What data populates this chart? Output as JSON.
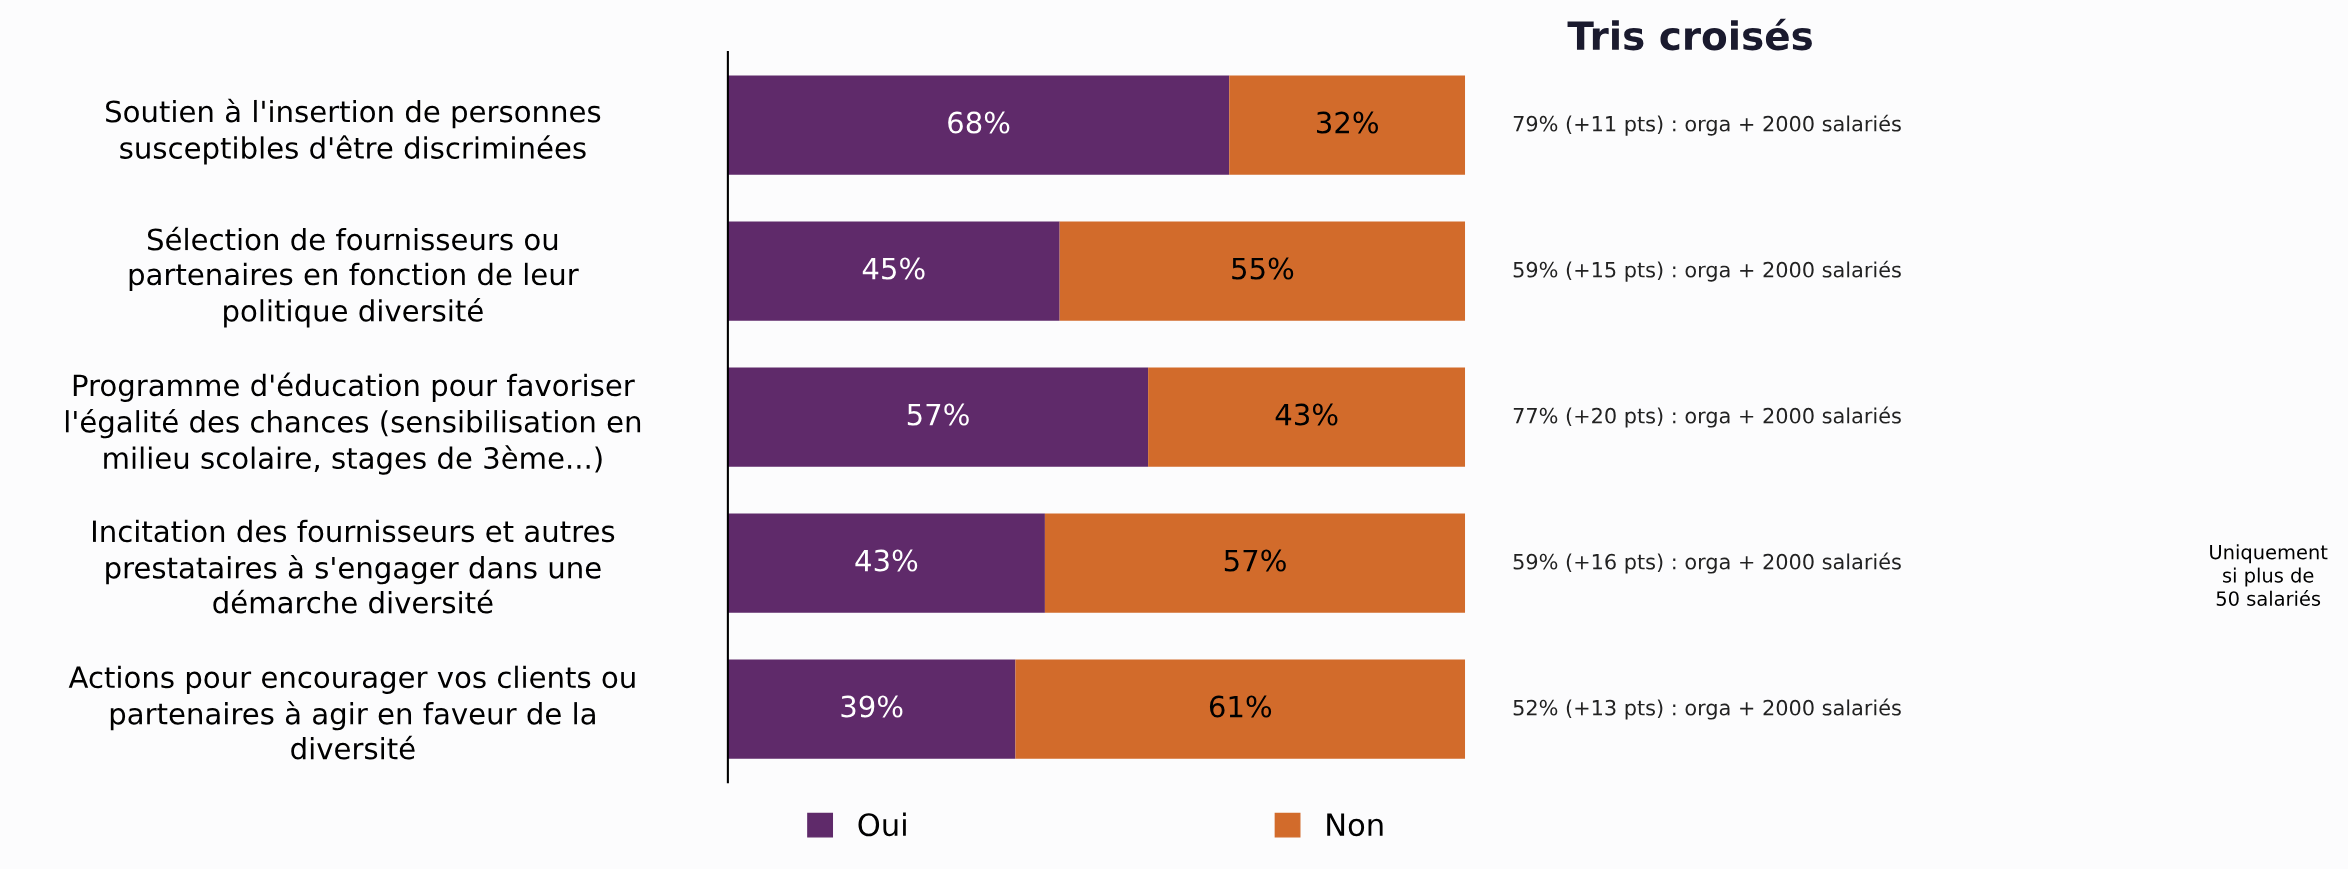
{
  "chart_data": {
    "type": "bar",
    "orientation": "horizontal",
    "stacked": true,
    "title": "Tris croisés",
    "categories": [
      "Soutien à l'insertion de personnes\nsusceptibles d'être discriminées",
      "Sélection de fournisseurs ou\npartenaires en fonction de leur\npolitique diversité",
      "Programme d'éducation pour favoriser\nl'égalité des chances (sensibilisation en\nmilieu scolaire, stages de 3ème...)",
      "Incitation des fournisseurs et autres\nprestataires à s'engager dans une\ndémarche diversité",
      "Actions pour encourager vos clients ou\npartenaires à agir en faveur de la\ndiversité"
    ],
    "series": [
      {
        "name": "Oui",
        "color": "#5f2a6a",
        "values": [
          68,
          45,
          57,
          43,
          39
        ],
        "value_labels": [
          "68%",
          "45%",
          "57%",
          "43%",
          "39%"
        ]
      },
      {
        "name": "Non",
        "color": "#d26b2b",
        "values": [
          32,
          55,
          43,
          57,
          61
        ],
        "value_labels": [
          "32%",
          "55%",
          "43%",
          "57%",
          "61%"
        ]
      }
    ],
    "xlim": [
      0,
      100
    ],
    "tick_labels": "y",
    "legend": "bottom",
    "grid": false,
    "annotations": [
      "79% (+11 pts) : orga + 2000 salariés",
      "59% (+15 pts) : orga + 2000 salariés",
      "77% (+20 pts) : orga + 2000 salariés",
      "59% (+16 pts) : orga + 2000 salariés",
      "52% (+13 pts) : orga + 2000 salariés",
      "Uniquement\nsi plus de\n50 salariés"
    ]
  }
}
